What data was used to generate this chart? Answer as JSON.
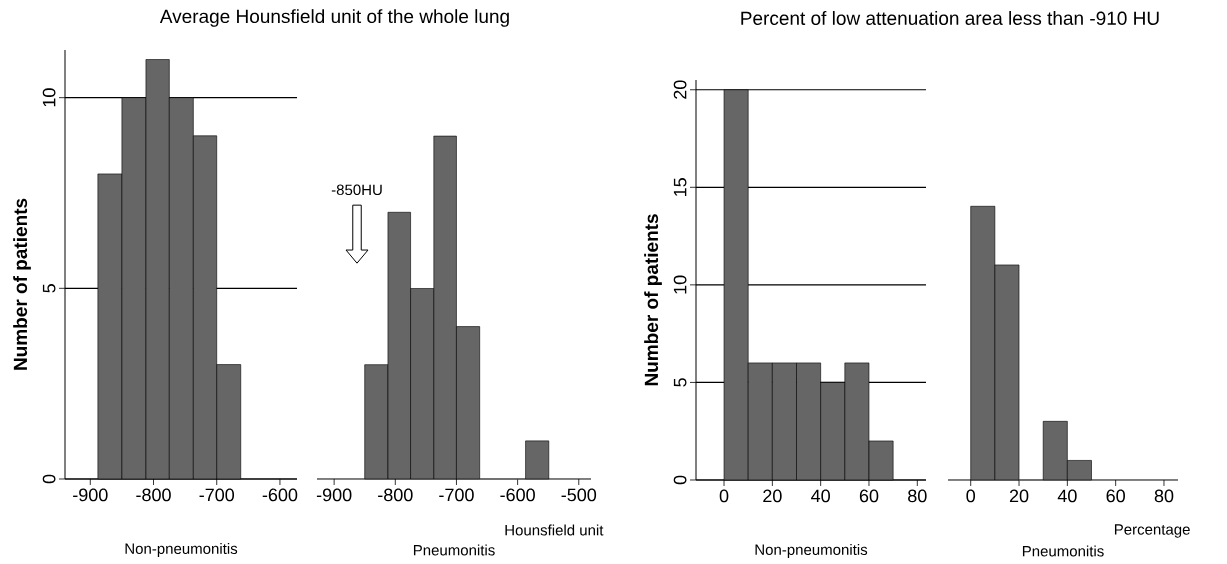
{
  "chart_data": [
    {
      "type": "histogram",
      "title": "Average Hounsfield unit of the whole lung",
      "ylabel": "Number of patients",
      "annotations": [
        "Non-pneumonitis"
      ],
      "bins": [
        -888,
        -850,
        -812,
        -775,
        -737,
        -700,
        -662
      ],
      "values": [
        8,
        10,
        11,
        10,
        9,
        3
      ],
      "color": "#666666",
      "xlim": [
        -940,
        -573
      ],
      "ylim": [
        0,
        11.25
      ],
      "xticks": [
        -900,
        -800,
        -700,
        -600
      ],
      "yticks": [
        0,
        5,
        10
      ],
      "grid": "y"
    },
    {
      "type": "histogram",
      "xlabel": "Hounsfield unit",
      "annotations": [
        "Pneumonitis",
        "-850HU"
      ],
      "bins": [
        -850,
        -812,
        -775,
        -737,
        -700,
        -662,
        -587,
        -549
      ],
      "values": [
        3,
        7,
        5,
        9,
        4,
        0,
        1
      ],
      "color": "#666666",
      "xlim": [
        -928,
        -480
      ],
      "ylim": [
        0,
        10
      ],
      "xticks": [
        -900,
        -800,
        -700,
        -600,
        -500
      ],
      "yticks": [
        0,
        5,
        10
      ],
      "grid": "y",
      "tick_labels": "x"
    },
    {
      "type": "histogram",
      "title": "Percent of low attenuation area less than -910 HU",
      "ylabel": "Number of patients",
      "annotations": [
        "Non-pneumonitis"
      ],
      "bins": [
        0,
        10,
        20,
        30,
        40,
        50,
        60,
        70
      ],
      "values": [
        20,
        6,
        6,
        6,
        5,
        6,
        2
      ],
      "color": "#666666",
      "xlim": [
        -11.6,
        83.6
      ],
      "ylim": [
        0,
        20.5
      ],
      "xticks": [
        0,
        20,
        40,
        60,
        80
      ],
      "yticks": [
        0,
        5,
        10,
        15,
        20
      ],
      "grid": "y"
    },
    {
      "type": "histogram",
      "xlabel": "Percentage",
      "annotations": [
        "Pneumonitis"
      ],
      "bins": [
        0,
        10,
        20,
        30,
        40,
        50
      ],
      "values": [
        14,
        11,
        0,
        3,
        1
      ],
      "color": "#666666",
      "xlim": [
        -9.4,
        85.8
      ],
      "ylim": [
        0,
        20
      ],
      "xticks": [
        0,
        20,
        40,
        60,
        80
      ],
      "yticks": [
        0,
        5,
        10,
        15,
        20
      ],
      "grid": "y",
      "tick_labels": "x"
    }
  ]
}
